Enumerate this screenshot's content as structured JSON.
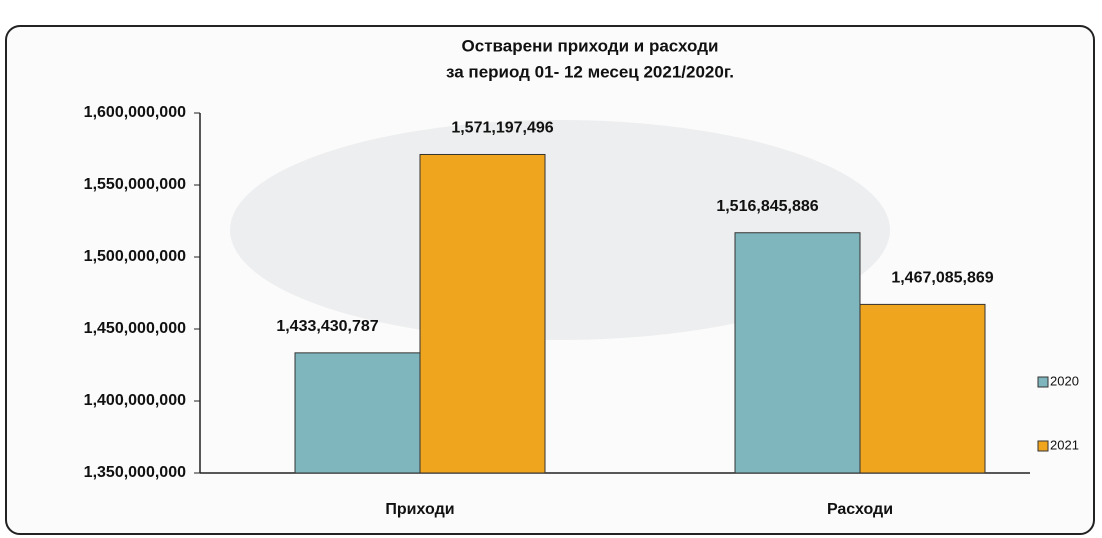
{
  "chart_data": {
    "type": "bar",
    "title": "Остварени приходи и расходи",
    "subtitle": "за период 01- 12 месец 2021/2020г.",
    "categories": [
      "Приходи",
      "Расходи"
    ],
    "series": [
      {
        "name": "2020",
        "color": "#7fb6bd",
        "values": [
          1433430787,
          1516845886
        ],
        "value_labels": [
          "1,433,430,787",
          "1,516,845,886"
        ]
      },
      {
        "name": "2021",
        "color": "#f0a51e",
        "values": [
          1571197496,
          1467085869
        ],
        "value_labels": [
          "1,571,197,496",
          "1,467,085,869"
        ]
      }
    ],
    "ylim": [
      1350000000,
      1600000000
    ],
    "yticks": [
      {
        "value": 1350000000,
        "label": "1,350,000,000"
      },
      {
        "value": 1400000000,
        "label": "1,400,000,000"
      },
      {
        "value": 1450000000,
        "label": "1,450,000,000"
      },
      {
        "value": 1500000000,
        "label": "1,500,000,000"
      },
      {
        "value": 1550000000,
        "label": "1,550,000,000"
      },
      {
        "value": 1600000000,
        "label": "1,600,000,000"
      }
    ],
    "grid": false,
    "legend": "right"
  }
}
